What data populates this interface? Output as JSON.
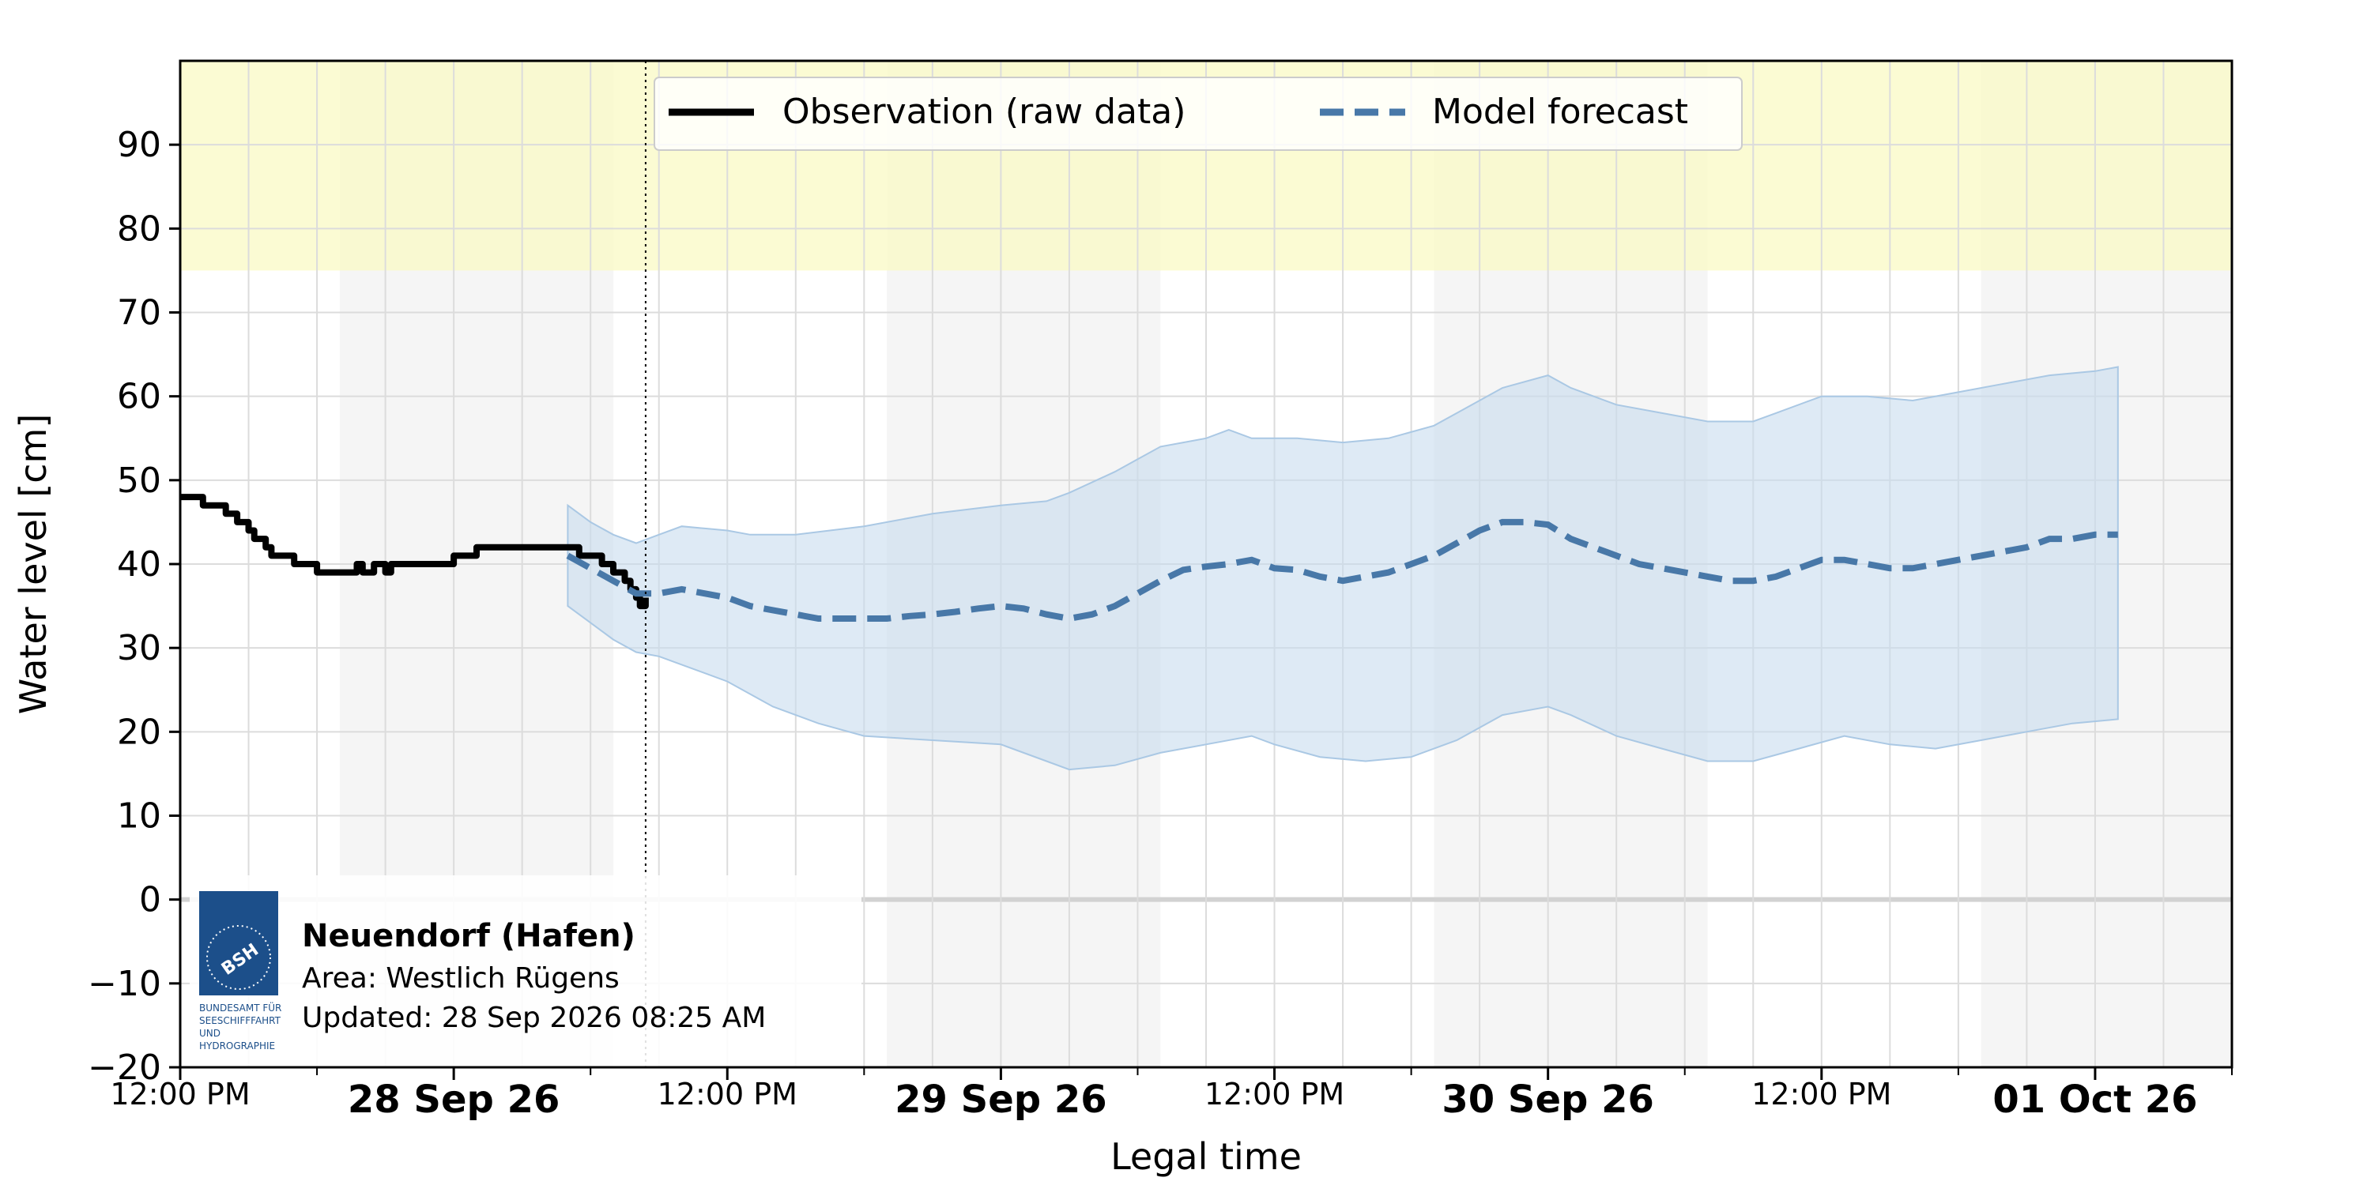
{
  "chart_data": {
    "type": "line",
    "title": "",
    "xlabel": "Legal time",
    "ylabel": "Water level [cm]",
    "xlim": [
      "2026-09-27 12:00",
      "2026-10-01 06:00"
    ],
    "ylim": [
      -20,
      100
    ],
    "yticks": [
      -20,
      -10,
      0,
      10,
      20,
      30,
      40,
      50,
      60,
      70,
      80,
      90
    ],
    "ytick_labels": [
      "−20",
      "−10",
      "0",
      "10",
      "20",
      "30",
      "40",
      "50",
      "60",
      "70",
      "80",
      "90"
    ],
    "grid": true,
    "legend_position": "top-center",
    "x_tick_labels": [
      {
        "label": "12:00 PM",
        "t": "2026-09-27 12:00",
        "bold": false
      },
      {
        "label": "28 Sep 26",
        "t": "2026-09-28 00:00",
        "bold": true
      },
      {
        "label": "12:00 PM",
        "t": "2026-09-28 12:00",
        "bold": false
      },
      {
        "label": "29 Sep 26",
        "t": "2026-09-29 00:00",
        "bold": true
      },
      {
        "label": "12:00 PM",
        "t": "2026-09-29 12:00",
        "bold": false
      },
      {
        "label": "30 Sep 26",
        "t": "2026-09-30 00:00",
        "bold": true
      },
      {
        "label": "12:00 PM",
        "t": "2026-09-30 12:00",
        "bold": false
      },
      {
        "label": "01 Oct 26",
        "t": "2026-10-01 00:00",
        "bold": true
      }
    ],
    "now_marker": "2026-09-28 08:25",
    "warning_band": {
      "from": 75,
      "to": 100,
      "color": "#fafac8"
    },
    "night_shading": [
      [
        "2026-09-27 19:00",
        "2026-09-28 07:00"
      ],
      [
        "2026-09-28 19:00",
        "2026-09-29 07:00"
      ],
      [
        "2026-09-29 19:00",
        "2026-09-30 07:00"
      ],
      [
        "2026-09-30 19:00",
        "2026-10-01 06:00"
      ]
    ],
    "series": [
      {
        "name": "Observation (raw data)",
        "style": "solid",
        "color": "#000000",
        "points": [
          [
            "2026-09-27 12:00",
            48
          ],
          [
            "2026-09-27 12:30",
            48
          ],
          [
            "2026-09-27 13:00",
            47
          ],
          [
            "2026-09-27 13:45",
            47
          ],
          [
            "2026-09-27 14:00",
            46
          ],
          [
            "2026-09-27 14:30",
            45
          ],
          [
            "2026-09-27 15:00",
            44
          ],
          [
            "2026-09-27 15:15",
            43
          ],
          [
            "2026-09-27 15:45",
            42
          ],
          [
            "2026-09-27 16:00",
            41
          ],
          [
            "2026-09-27 16:30",
            41
          ],
          [
            "2026-09-27 17:00",
            40
          ],
          [
            "2026-09-27 17:30",
            40
          ],
          [
            "2026-09-27 18:00",
            39
          ],
          [
            "2026-09-27 19:00",
            39
          ],
          [
            "2026-09-27 19:30",
            39
          ],
          [
            "2026-09-27 19:45",
            40
          ],
          [
            "2026-09-27 20:00",
            39
          ],
          [
            "2026-09-27 20:30",
            40
          ],
          [
            "2026-09-27 21:00",
            39
          ],
          [
            "2026-09-27 21:15",
            40
          ],
          [
            "2026-09-27 22:00",
            40
          ],
          [
            "2026-09-27 23:00",
            40
          ],
          [
            "2026-09-28 00:00",
            41
          ],
          [
            "2026-09-28 00:30",
            41
          ],
          [
            "2026-09-28 01:00",
            42
          ],
          [
            "2026-09-28 02:00",
            42
          ],
          [
            "2026-09-28 03:00",
            42
          ],
          [
            "2026-09-28 04:00",
            42
          ],
          [
            "2026-09-28 05:00",
            42
          ],
          [
            "2026-09-28 05:30",
            41
          ],
          [
            "2026-09-28 06:00",
            41
          ],
          [
            "2026-09-28 06:30",
            40
          ],
          [
            "2026-09-28 07:00",
            39
          ],
          [
            "2026-09-28 07:30",
            38
          ],
          [
            "2026-09-28 07:45",
            37
          ],
          [
            "2026-09-28 08:00",
            36
          ],
          [
            "2026-09-28 08:10",
            35
          ],
          [
            "2026-09-28 08:25",
            36
          ]
        ]
      },
      {
        "name": "Model forecast",
        "style": "dashed",
        "color": "#4878a8",
        "points": [
          [
            "2026-09-28 05:00",
            41
          ],
          [
            "2026-09-28 06:00",
            39.5
          ],
          [
            "2026-09-28 07:00",
            38
          ],
          [
            "2026-09-28 08:00",
            36.5
          ],
          [
            "2026-09-28 09:00",
            36.5
          ],
          [
            "2026-09-28 10:00",
            37
          ],
          [
            "2026-09-28 11:00",
            36.5
          ],
          [
            "2026-09-28 12:00",
            36
          ],
          [
            "2026-09-28 13:00",
            35
          ],
          [
            "2026-09-28 14:00",
            34.5
          ],
          [
            "2026-09-28 15:00",
            34
          ],
          [
            "2026-09-28 16:00",
            33.5
          ],
          [
            "2026-09-28 17:00",
            33.5
          ],
          [
            "2026-09-28 18:00",
            33.5
          ],
          [
            "2026-09-28 19:00",
            33.5
          ],
          [
            "2026-09-28 20:00",
            33.8
          ],
          [
            "2026-09-28 21:00",
            34
          ],
          [
            "2026-09-28 22:00",
            34.3
          ],
          [
            "2026-09-28 23:00",
            34.7
          ],
          [
            "2026-09-29 00:00",
            35
          ],
          [
            "2026-09-29 01:00",
            34.7
          ],
          [
            "2026-09-29 02:00",
            34
          ],
          [
            "2026-09-29 03:00",
            33.5
          ],
          [
            "2026-09-29 04:00",
            34
          ],
          [
            "2026-09-29 05:00",
            35
          ],
          [
            "2026-09-29 06:00",
            36.5
          ],
          [
            "2026-09-29 07:00",
            38
          ],
          [
            "2026-09-29 08:00",
            39.3
          ],
          [
            "2026-09-29 09:00",
            39.7
          ],
          [
            "2026-09-29 10:00",
            40
          ],
          [
            "2026-09-29 11:00",
            40.5
          ],
          [
            "2026-09-29 12:00",
            39.5
          ],
          [
            "2026-09-29 13:00",
            39.3
          ],
          [
            "2026-09-29 14:00",
            38.5
          ],
          [
            "2026-09-29 15:00",
            38
          ],
          [
            "2026-09-29 16:00",
            38.5
          ],
          [
            "2026-09-29 17:00",
            39
          ],
          [
            "2026-09-29 18:00",
            40
          ],
          [
            "2026-09-29 19:00",
            41
          ],
          [
            "2026-09-29 20:00",
            42.5
          ],
          [
            "2026-09-29 21:00",
            44
          ],
          [
            "2026-09-29 22:00",
            45
          ],
          [
            "2026-09-29 23:00",
            45
          ],
          [
            "2026-09-30 00:00",
            44.7
          ],
          [
            "2026-09-30 01:00",
            43
          ],
          [
            "2026-09-30 02:00",
            42
          ],
          [
            "2026-09-30 03:00",
            41
          ],
          [
            "2026-09-30 04:00",
            40
          ],
          [
            "2026-09-30 05:00",
            39.5
          ],
          [
            "2026-09-30 06:00",
            39
          ],
          [
            "2026-09-30 07:00",
            38.5
          ],
          [
            "2026-09-30 08:00",
            38
          ],
          [
            "2026-09-30 09:00",
            38
          ],
          [
            "2026-09-30 10:00",
            38.5
          ],
          [
            "2026-09-30 11:00",
            39.5
          ],
          [
            "2026-09-30 12:00",
            40.5
          ],
          [
            "2026-09-30 13:00",
            40.5
          ],
          [
            "2026-09-30 14:00",
            40
          ],
          [
            "2026-09-30 15:00",
            39.5
          ],
          [
            "2026-09-30 16:00",
            39.5
          ],
          [
            "2026-09-30 17:00",
            40
          ],
          [
            "2026-09-30 18:00",
            40.5
          ],
          [
            "2026-09-30 19:00",
            41
          ],
          [
            "2026-09-30 20:00",
            41.5
          ],
          [
            "2026-09-30 21:00",
            42
          ],
          [
            "2026-09-30 22:00",
            43
          ],
          [
            "2026-09-30 23:00",
            43
          ],
          [
            "2026-10-01 00:00",
            43.5
          ],
          [
            "2026-10-01 01:00",
            43.5
          ]
        ],
        "band": {
          "color": "#c8dcee",
          "upper": [
            [
              "2026-09-28 05:00",
              47
            ],
            [
              "2026-09-28 06:00",
              45
            ],
            [
              "2026-09-28 07:00",
              43.5
            ],
            [
              "2026-09-28 08:00",
              42.5
            ],
            [
              "2026-09-28 09:00",
              43.5
            ],
            [
              "2026-09-28 10:00",
              44.5
            ],
            [
              "2026-09-28 12:00",
              44
            ],
            [
              "2026-09-28 13:00",
              43.5
            ],
            [
              "2026-09-28 15:00",
              43.5
            ],
            [
              "2026-09-28 18:00",
              44.5
            ],
            [
              "2026-09-28 21:00",
              46
            ],
            [
              "2026-09-29 00:00",
              47
            ],
            [
              "2026-09-29 02:00",
              47.5
            ],
            [
              "2026-09-29 03:00",
              48.5
            ],
            [
              "2026-09-29 05:00",
              51
            ],
            [
              "2026-09-29 06:00",
              52.5
            ],
            [
              "2026-09-29 07:00",
              54
            ],
            [
              "2026-09-29 08:00",
              54.5
            ],
            [
              "2026-09-29 09:00",
              55
            ],
            [
              "2026-09-29 10:00",
              56
            ],
            [
              "2026-09-29 11:00",
              55
            ],
            [
              "2026-09-29 13:00",
              55
            ],
            [
              "2026-09-29 15:00",
              54.5
            ],
            [
              "2026-09-29 17:00",
              55
            ],
            [
              "2026-09-29 19:00",
              56.5
            ],
            [
              "2026-09-29 20:00",
              58
            ],
            [
              "2026-09-29 22:00",
              61
            ],
            [
              "2026-09-30 00:00",
              62.5
            ],
            [
              "2026-09-30 01:00",
              61
            ],
            [
              "2026-09-30 03:00",
              59
            ],
            [
              "2026-09-30 05:00",
              58
            ],
            [
              "2026-09-30 07:00",
              57
            ],
            [
              "2026-09-30 09:00",
              57
            ],
            [
              "2026-09-30 10:00",
              58
            ],
            [
              "2026-09-30 12:00",
              60
            ],
            [
              "2026-09-30 14:00",
              60
            ],
            [
              "2026-09-30 16:00",
              59.5
            ],
            [
              "2026-09-30 18:00",
              60.5
            ],
            [
              "2026-09-30 20:00",
              61.5
            ],
            [
              "2026-09-30 22:00",
              62.5
            ],
            [
              "2026-10-01 00:00",
              63
            ],
            [
              "2026-10-01 01:00",
              63.5
            ]
          ],
          "lower": [
            [
              "2026-09-28 05:00",
              35
            ],
            [
              "2026-09-28 06:00",
              33
            ],
            [
              "2026-09-28 07:00",
              31
            ],
            [
              "2026-09-28 08:00",
              29.5
            ],
            [
              "2026-09-28 09:00",
              29
            ],
            [
              "2026-09-28 10:00",
              28
            ],
            [
              "2026-09-28 12:00",
              26
            ],
            [
              "2026-09-28 14:00",
              23
            ],
            [
              "2026-09-28 16:00",
              21
            ],
            [
              "2026-09-28 18:00",
              19.5
            ],
            [
              "2026-09-28 21:00",
              19
            ],
            [
              "2026-09-29 00:00",
              18.5
            ],
            [
              "2026-09-29 02:00",
              16.5
            ],
            [
              "2026-09-29 03:00",
              15.5
            ],
            [
              "2026-09-29 05:00",
              16
            ],
            [
              "2026-09-29 07:00",
              17.5
            ],
            [
              "2026-09-29 09:00",
              18.5
            ],
            [
              "2026-09-29 11:00",
              19.5
            ],
            [
              "2026-09-29 12:00",
              18.5
            ],
            [
              "2026-09-29 14:00",
              17
            ],
            [
              "2026-09-29 16:00",
              16.5
            ],
            [
              "2026-09-29 18:00",
              17
            ],
            [
              "2026-09-29 20:00",
              19
            ],
            [
              "2026-09-29 22:00",
              22
            ],
            [
              "2026-09-30 00:00",
              23
            ],
            [
              "2026-09-30 01:00",
              22
            ],
            [
              "2026-09-30 03:00",
              19.5
            ],
            [
              "2026-09-30 05:00",
              18
            ],
            [
              "2026-09-30 07:00",
              16.5
            ],
            [
              "2026-09-30 09:00",
              16.5
            ],
            [
              "2026-09-30 11:00",
              18
            ],
            [
              "2026-09-30 13:00",
              19.5
            ],
            [
              "2026-09-30 15:00",
              18.5
            ],
            [
              "2026-09-30 17:00",
              18
            ],
            [
              "2026-09-30 19:00",
              19
            ],
            [
              "2026-09-30 21:00",
              20
            ],
            [
              "2026-09-30 23:00",
              21
            ],
            [
              "2026-10-01 01:00",
              21.5
            ]
          ]
        }
      }
    ]
  },
  "info_box": {
    "station": "Neuendorf (Hafen)",
    "area": "Area: Westlich Rügens",
    "updated": "Updated: 28 Sep 2026 08:25 AM"
  },
  "logo": {
    "abbr": "BSH",
    "text_lines": [
      "BUNDESAMT FÜR",
      "SEESCHIFFFAHRT",
      "UND",
      "HYDROGRAPHIE"
    ],
    "color": "#1c4f8a"
  }
}
